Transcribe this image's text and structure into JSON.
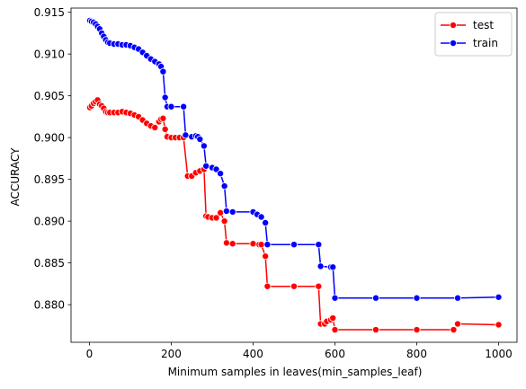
{
  "chart_data": {
    "type": "line",
    "xlabel": "Minimum samples in leaves(min_samples_leaf)",
    "ylabel": "ACCURACY",
    "xlim": [
      -45,
      1045
    ],
    "ylim": [
      0.8755,
      0.9155
    ],
    "xticks": [
      0,
      200,
      400,
      600,
      800,
      1000
    ],
    "yticks": [
      0.88,
      0.885,
      0.89,
      0.895,
      0.9,
      0.905,
      0.91,
      0.915
    ],
    "legend_position": "upper right",
    "grid": false,
    "series": [
      {
        "name": "test",
        "color": "#ff0000",
        "points": [
          [
            1,
            0.9036
          ],
          [
            5,
            0.9038
          ],
          [
            10,
            0.9041
          ],
          [
            15,
            0.9043
          ],
          [
            20,
            0.9045
          ],
          [
            25,
            0.904
          ],
          [
            30,
            0.9038
          ],
          [
            35,
            0.9035
          ],
          [
            40,
            0.9031
          ],
          [
            45,
            0.903
          ],
          [
            50,
            0.903
          ],
          [
            60,
            0.903
          ],
          [
            70,
            0.903
          ],
          [
            80,
            0.9031
          ],
          [
            90,
            0.903
          ],
          [
            100,
            0.9029
          ],
          [
            110,
            0.9027
          ],
          [
            120,
            0.9025
          ],
          [
            130,
            0.9021
          ],
          [
            140,
            0.9017
          ],
          [
            150,
            0.9014
          ],
          [
            160,
            0.9012
          ],
          [
            170,
            0.9019
          ],
          [
            175,
            0.9022
          ],
          [
            180,
            0.9023
          ],
          [
            185,
            0.901
          ],
          [
            190,
            0.9001
          ],
          [
            200,
            0.9
          ],
          [
            210,
            0.9
          ],
          [
            220,
            0.9
          ],
          [
            230,
            0.9
          ],
          [
            240,
            0.8954
          ],
          [
            250,
            0.8954
          ],
          [
            260,
            0.8958
          ],
          [
            270,
            0.896
          ],
          [
            280,
            0.8962
          ],
          [
            285,
            0.8906
          ],
          [
            290,
            0.8905
          ],
          [
            300,
            0.8904
          ],
          [
            310,
            0.8904
          ],
          [
            320,
            0.891
          ],
          [
            330,
            0.89
          ],
          [
            335,
            0.8874
          ],
          [
            350,
            0.8873
          ],
          [
            400,
            0.8873
          ],
          [
            415,
            0.8872
          ],
          [
            420,
            0.8872
          ],
          [
            430,
            0.8858
          ],
          [
            435,
            0.8822
          ],
          [
            500,
            0.8822
          ],
          [
            560,
            0.8822
          ],
          [
            565,
            0.8777
          ],
          [
            575,
            0.8777
          ],
          [
            580,
            0.878
          ],
          [
            590,
            0.8782
          ],
          [
            595,
            0.8784
          ],
          [
            600,
            0.877
          ],
          [
            700,
            0.877
          ],
          [
            800,
            0.877
          ],
          [
            890,
            0.877
          ],
          [
            900,
            0.8777
          ],
          [
            1000,
            0.8776
          ]
        ]
      },
      {
        "name": "train",
        "color": "#0000ff",
        "points": [
          [
            1,
            0.914
          ],
          [
            5,
            0.9139
          ],
          [
            10,
            0.9138
          ],
          [
            15,
            0.9136
          ],
          [
            20,
            0.9133
          ],
          [
            25,
            0.913
          ],
          [
            30,
            0.9125
          ],
          [
            35,
            0.9121
          ],
          [
            40,
            0.9117
          ],
          [
            45,
            0.9114
          ],
          [
            50,
            0.9113
          ],
          [
            60,
            0.9112
          ],
          [
            70,
            0.9112
          ],
          [
            80,
            0.9111
          ],
          [
            90,
            0.9111
          ],
          [
            100,
            0.911
          ],
          [
            110,
            0.9108
          ],
          [
            120,
            0.9106
          ],
          [
            130,
            0.9102
          ],
          [
            140,
            0.9098
          ],
          [
            150,
            0.9094
          ],
          [
            160,
            0.9091
          ],
          [
            170,
            0.9088
          ],
          [
            175,
            0.9085
          ],
          [
            180,
            0.9079
          ],
          [
            185,
            0.9048
          ],
          [
            190,
            0.9037
          ],
          [
            200,
            0.9037
          ],
          [
            230,
            0.9037
          ],
          [
            235,
            0.9003
          ],
          [
            250,
            0.9001
          ],
          [
            260,
            0.9002
          ],
          [
            265,
            0.9001
          ],
          [
            270,
            0.8998
          ],
          [
            280,
            0.899
          ],
          [
            285,
            0.8966
          ],
          [
            300,
            0.8964
          ],
          [
            310,
            0.8962
          ],
          [
            320,
            0.8957
          ],
          [
            330,
            0.8942
          ],
          [
            335,
            0.8912
          ],
          [
            350,
            0.8911
          ],
          [
            400,
            0.8911
          ],
          [
            410,
            0.8908
          ],
          [
            420,
            0.8905
          ],
          [
            430,
            0.8898
          ],
          [
            435,
            0.8872
          ],
          [
            500,
            0.8872
          ],
          [
            560,
            0.8872
          ],
          [
            565,
            0.8846
          ],
          [
            590,
            0.8845
          ],
          [
            595,
            0.8845
          ],
          [
            600,
            0.8808
          ],
          [
            700,
            0.8808
          ],
          [
            800,
            0.8808
          ],
          [
            900,
            0.8808
          ],
          [
            1000,
            0.8809
          ]
        ]
      }
    ]
  }
}
